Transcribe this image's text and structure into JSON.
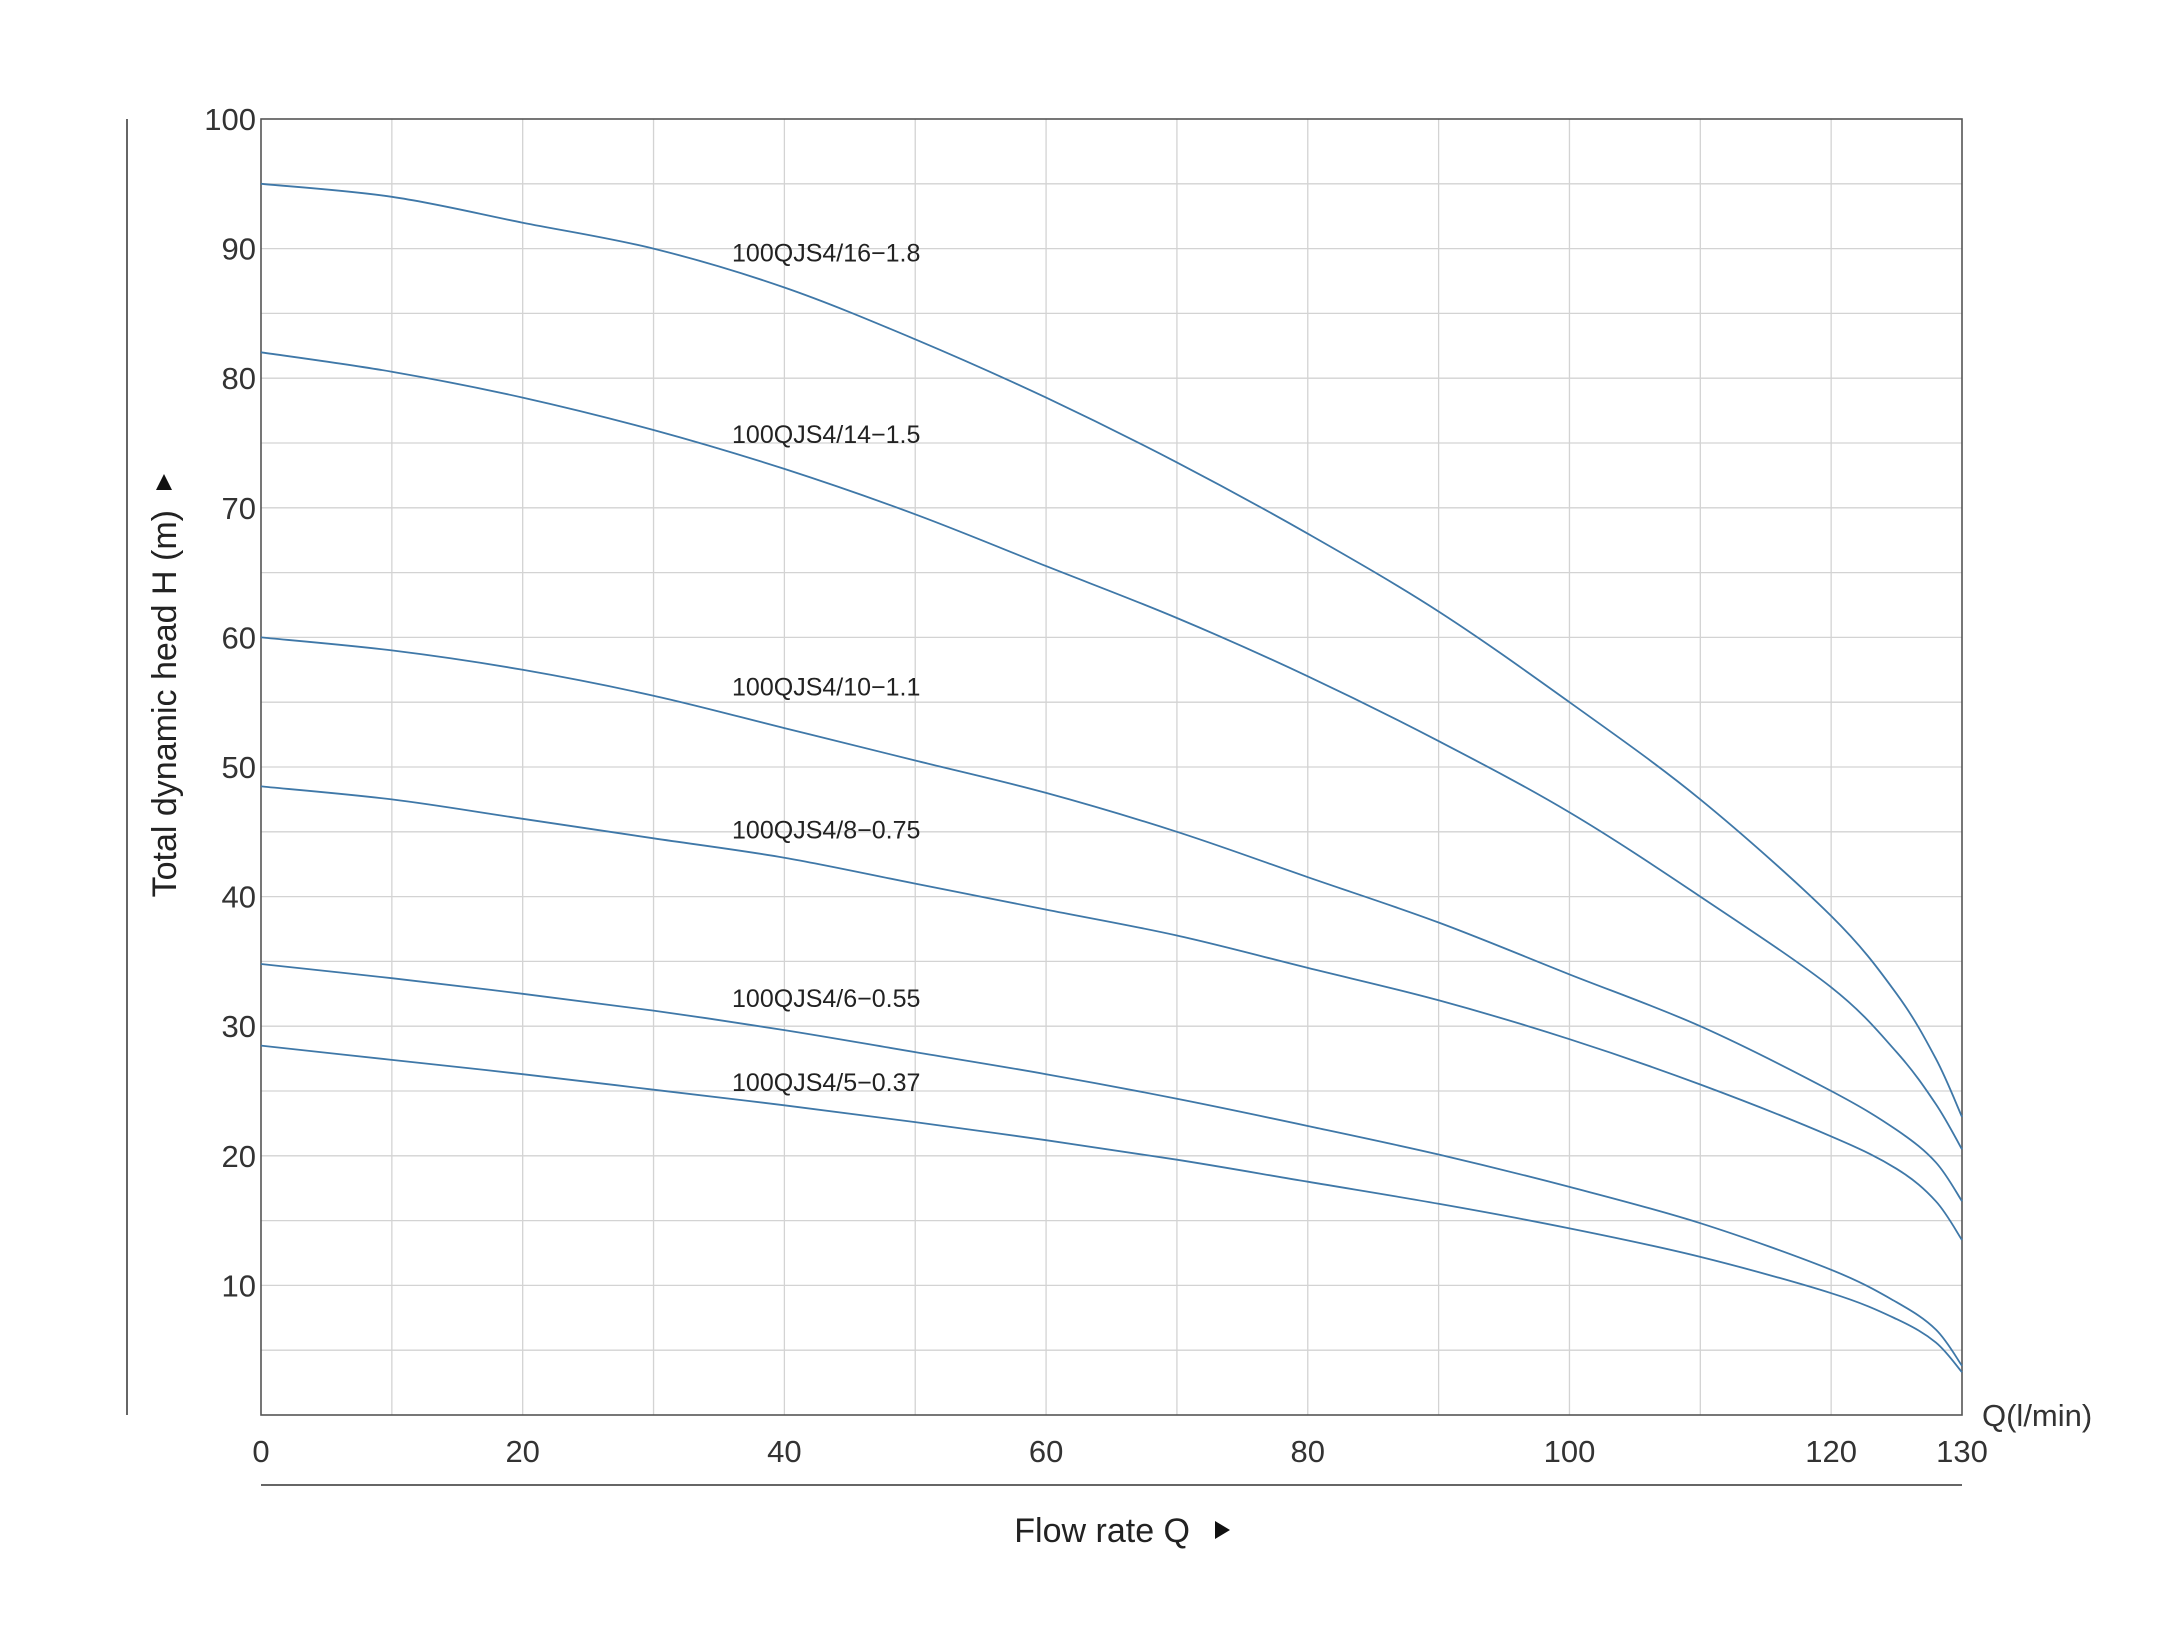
{
  "colors": {
    "curve": "#3f78a8",
    "grid": "#d3d3d3",
    "frame": "#555555",
    "text": "#333333"
  },
  "chart_data": {
    "type": "line",
    "xlabel": "Flow rate Q",
    "ylabel": "Total dynamic head H (m)",
    "x_unit_label": "Q(l/min)",
    "xlim": [
      0,
      130
    ],
    "ylim": [
      0,
      100
    ],
    "x_ticks": [
      "0",
      "20",
      "40",
      "60",
      "80",
      "100",
      "120",
      "130"
    ],
    "x_tick_values": [
      0,
      20,
      40,
      60,
      80,
      100,
      120,
      130
    ],
    "y_ticks": [
      "10",
      "20",
      "30",
      "40",
      "50",
      "60",
      "70",
      "80",
      "90",
      "100"
    ],
    "y_tick_values": [
      10,
      20,
      30,
      40,
      50,
      60,
      70,
      80,
      90,
      100
    ],
    "grid": true,
    "grid_x_step": 10,
    "grid_y_step": 5,
    "series": [
      {
        "name": "100QJS4/16−1.8",
        "label_at": [
          36,
          89
        ],
        "x": [
          0,
          10,
          20,
          30,
          40,
          50,
          60,
          70,
          80,
          90,
          100,
          110,
          120,
          125,
          128,
          130
        ],
        "y": [
          95,
          94,
          92,
          90,
          87,
          83,
          78.5,
          73.5,
          68,
          62,
          55,
          47.5,
          38.5,
          32.5,
          27.5,
          23
        ]
      },
      {
        "name": "100QJS4/14−1.5",
        "label_at": [
          36,
          75
        ],
        "x": [
          0,
          10,
          20,
          30,
          40,
          50,
          60,
          70,
          80,
          90,
          100,
          110,
          120,
          125,
          128,
          130
        ],
        "y": [
          82,
          80.5,
          78.5,
          76,
          73,
          69.5,
          65.5,
          61.5,
          57,
          52,
          46.5,
          40,
          33,
          28,
          24,
          20.5
        ]
      },
      {
        "name": "100QJS4/10−1.1",
        "label_at": [
          36,
          55.5
        ],
        "x": [
          0,
          10,
          20,
          30,
          40,
          50,
          60,
          70,
          80,
          90,
          100,
          110,
          120,
          125,
          128,
          130
        ],
        "y": [
          60,
          59,
          57.5,
          55.5,
          53,
          50.5,
          48,
          45,
          41.5,
          38,
          34,
          30,
          25,
          22,
          19.5,
          16.5
        ]
      },
      {
        "name": "100QJS4/8−0.75",
        "label_at": [
          36,
          44.5
        ],
        "x": [
          0,
          10,
          20,
          30,
          40,
          50,
          60,
          70,
          80,
          90,
          100,
          110,
          120,
          125,
          128,
          130
        ],
        "y": [
          48.5,
          47.5,
          46,
          44.5,
          43,
          41,
          39,
          37,
          34.5,
          32,
          29,
          25.5,
          21.5,
          19,
          16.5,
          13.5
        ]
      },
      {
        "name": "100QJS4/6−0.55",
        "label_at": [
          36,
          31.5
        ],
        "x": [
          0,
          10,
          20,
          30,
          40,
          50,
          60,
          70,
          80,
          90,
          100,
          110,
          120,
          125,
          128,
          130
        ],
        "y": [
          34.8,
          33.7,
          32.5,
          31.2,
          29.7,
          28,
          26.3,
          24.4,
          22.3,
          20.1,
          17.6,
          14.8,
          11.2,
          8.7,
          6.6,
          3.8
        ]
      },
      {
        "name": "100QJS4/5−0.37",
        "label_at": [
          36,
          25
        ],
        "x": [
          0,
          10,
          20,
          30,
          40,
          50,
          60,
          70,
          80,
          90,
          100,
          110,
          120,
          125,
          128,
          130
        ],
        "y": [
          28.5,
          27.4,
          26.3,
          25.1,
          23.9,
          22.6,
          21.2,
          19.7,
          18,
          16.3,
          14.4,
          12.2,
          9.4,
          7.4,
          5.6,
          3.3
        ]
      }
    ]
  }
}
